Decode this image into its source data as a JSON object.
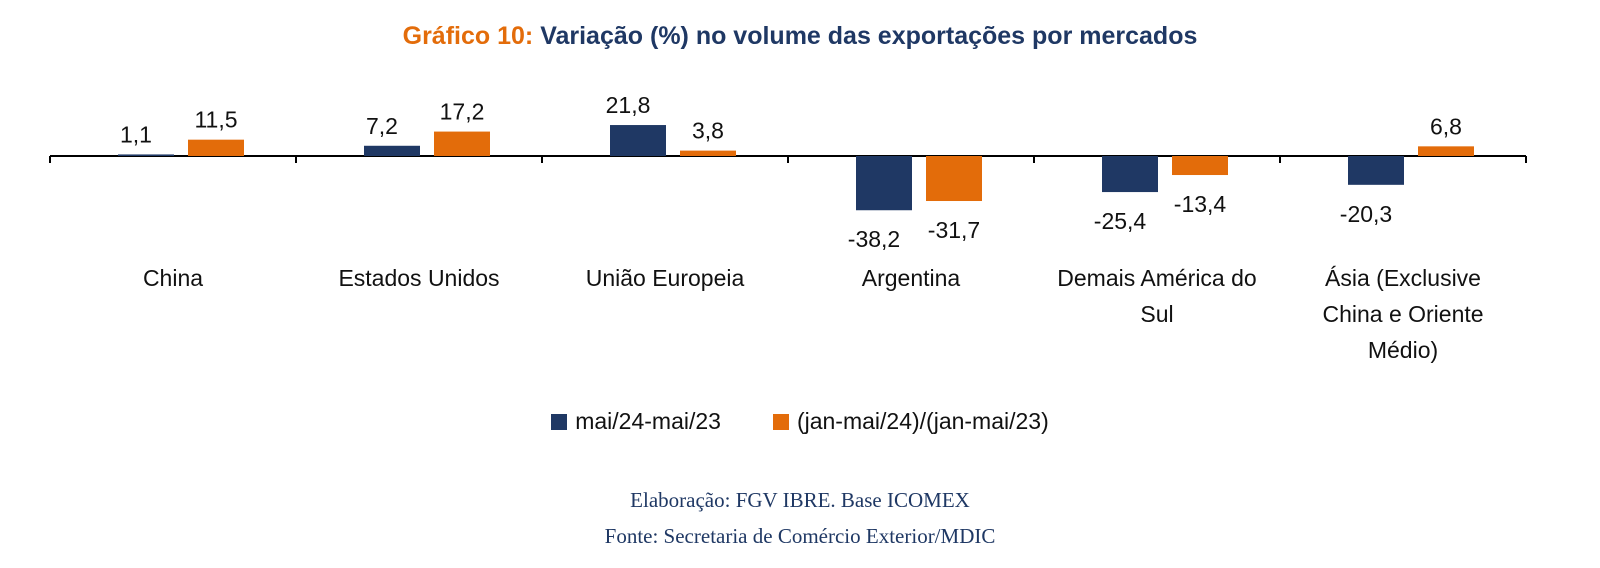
{
  "title": {
    "prefix": "Gráfico 10:",
    "text": "Variação (%) no volume das exportações por mercados"
  },
  "colors": {
    "series1": "#1f3864",
    "series2": "#e36c0a"
  },
  "chart_data": {
    "type": "bar",
    "title": "Gráfico 10: Variação (%) no volume das exportações por mercados",
    "categories": [
      [
        "China"
      ],
      [
        "Estados Unidos"
      ],
      [
        "União Europeia"
      ],
      [
        "Argentina"
      ],
      [
        "Demais América do",
        "Sul"
      ],
      [
        "Ásia (Exclusive",
        "China e Oriente",
        "Médio)"
      ]
    ],
    "series": [
      {
        "name": "mai/24-mai/23",
        "color": "#1f3864",
        "values": [
          1.1,
          7.2,
          21.8,
          -38.2,
          -25.4,
          -20.3
        ],
        "labels": [
          "1,1",
          "7,2",
          "21,8",
          "-38,2",
          "-25,4",
          "-20,3"
        ]
      },
      {
        "name": "(jan-mai/24)/(jan-mai/23)",
        "color": "#e36c0a",
        "values": [
          11.5,
          17.2,
          3.8,
          -31.7,
          -13.4,
          6.8
        ],
        "labels": [
          "11,5",
          "17,2",
          "3,8",
          "-31,7",
          "-13,4",
          "6,8"
        ]
      }
    ],
    "legend_position": "bottom",
    "grid": false
  },
  "footer": {
    "line1": "Elaboração: FGV IBRE. Base ICOMEX",
    "line2": "Fonte: Secretaria de Comércio Exterior/MDIC"
  }
}
